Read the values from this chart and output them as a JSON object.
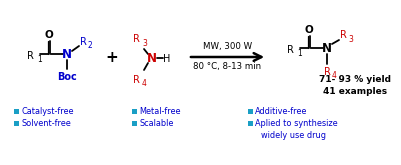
{
  "bg_color": "#ffffff",
  "bullet_color": "#1a9fc5",
  "bullet_items_row1": [
    "Catalyst-free",
    "Metal-free",
    "Additive-free"
  ],
  "bullet_items_row2": [
    "Solvent-free",
    "Scalable",
    "Aplied to synthesize"
  ],
  "bullet_items_row3": [
    "",
    "",
    "widely use drug"
  ],
  "reaction_arrow_text_top": "MW, 300 W",
  "reaction_arrow_text_bottom": "80 °C, 8-13 min",
  "yield_line1": "71- 93 % yield",
  "yield_line2": "41 examples",
  "text_color": "#000000",
  "blue_color": "#0000cc",
  "red_color": "#cc0000"
}
